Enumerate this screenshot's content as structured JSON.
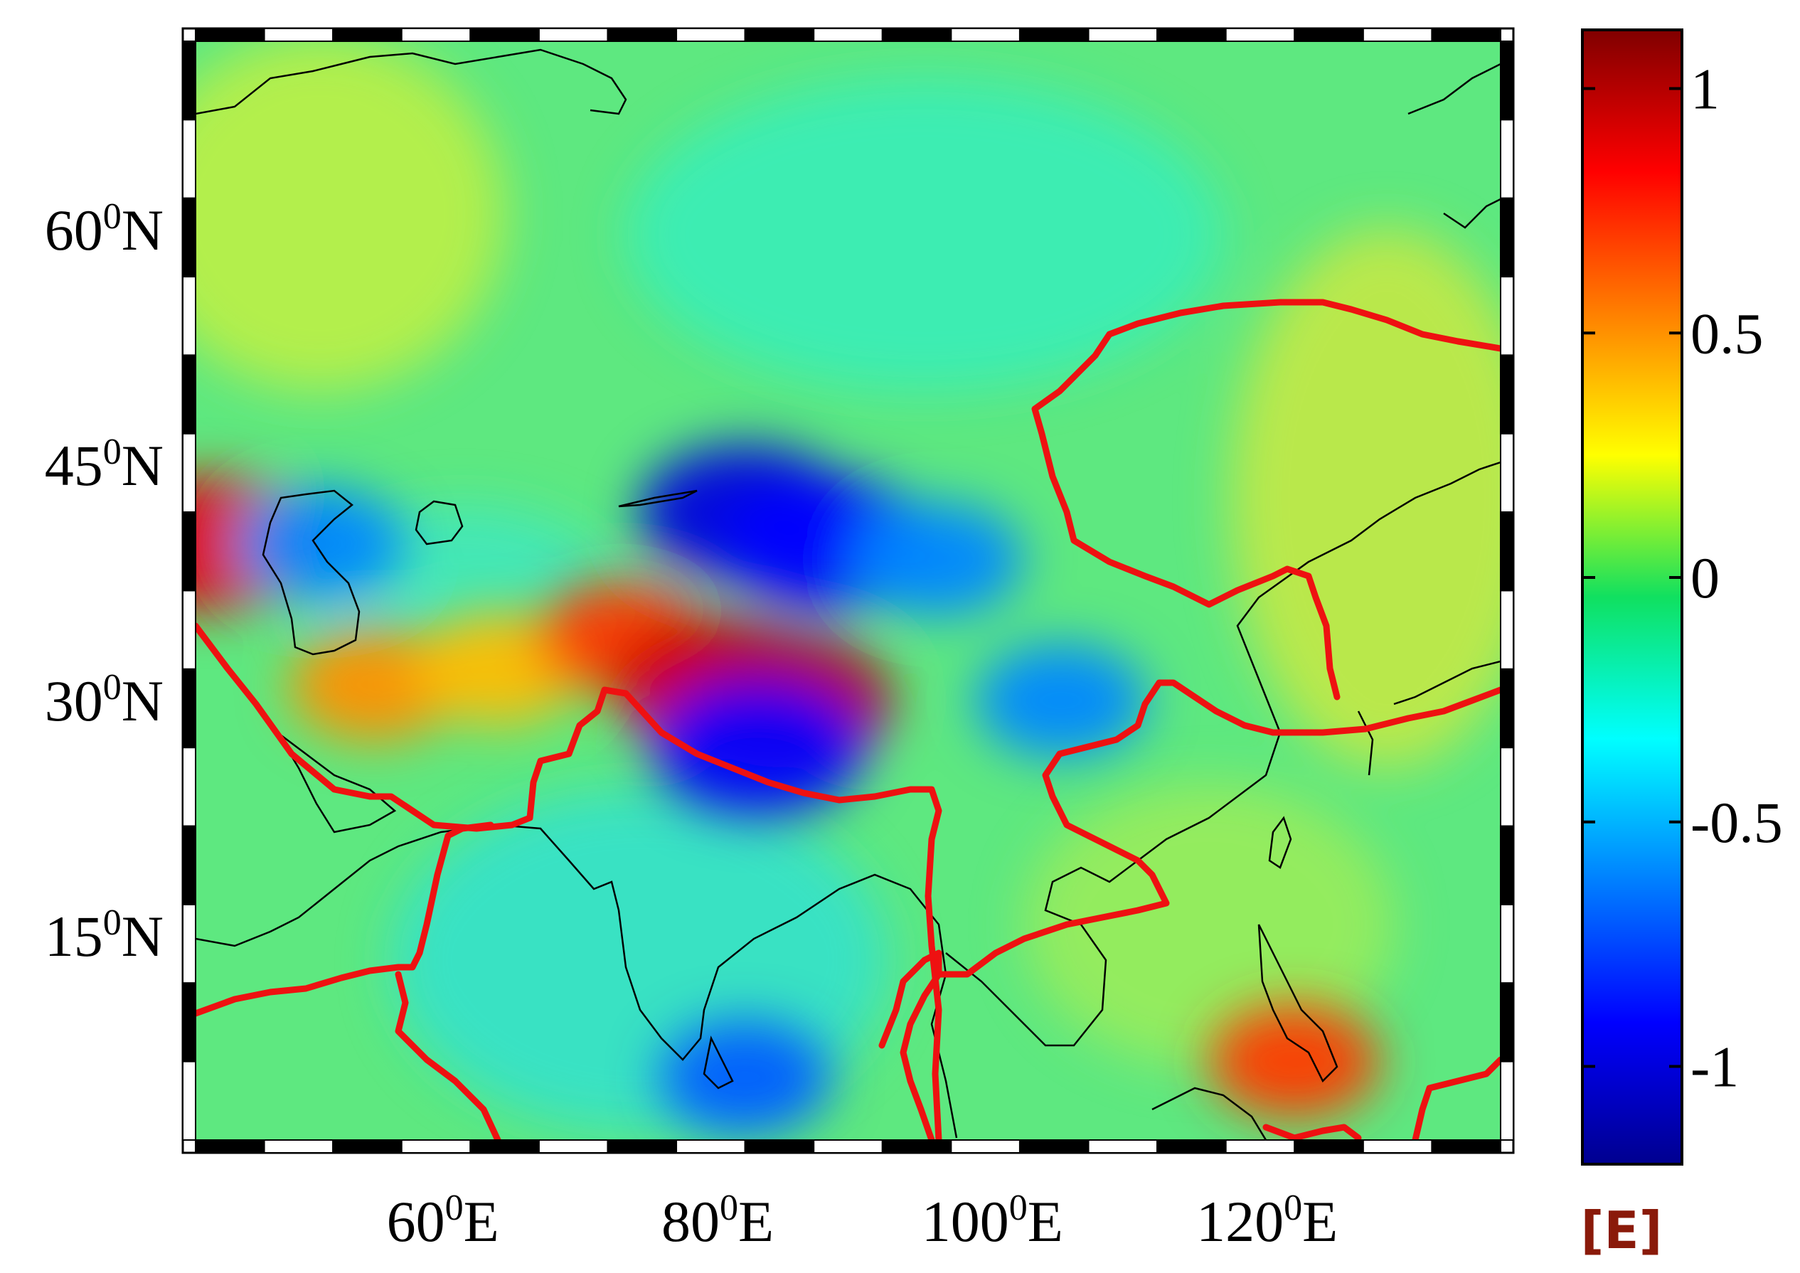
{
  "map": {
    "lat_ticks": [
      {
        "base": "60",
        "deg": "0",
        "hemi": "N"
      },
      {
        "base": "45",
        "deg": "0",
        "hemi": "N"
      },
      {
        "base": "30",
        "deg": "0",
        "hemi": "N"
      },
      {
        "base": "15",
        "deg": "0",
        "hemi": "N"
      }
    ],
    "lon_ticks": [
      {
        "base": "60",
        "deg": "0",
        "hemi": "E"
      },
      {
        "base": "80",
        "deg": "0",
        "hemi": "E"
      },
      {
        "base": "100",
        "deg": "0",
        "hemi": "E"
      },
      {
        "base": "120",
        "deg": "0",
        "hemi": "E"
      }
    ],
    "lat_values": [
      60,
      45,
      30,
      15
    ],
    "lon_values": [
      60,
      80,
      100,
      120
    ],
    "extent": {
      "lon_min": 42,
      "lon_max": 137,
      "lat_min": 2,
      "lat_max": 72
    },
    "frame_style": "alternating black and white bar",
    "overlays": [
      "coastlines (black)",
      "plate boundaries (red)"
    ]
  },
  "colorbar": {
    "ticks": [
      "1",
      "0.5",
      "0",
      "-0.5",
      "-1"
    ],
    "tick_values": [
      1,
      0.5,
      0,
      -0.5,
      -1
    ],
    "range": [
      -1.2,
      1.12
    ],
    "colormap": "jet",
    "unit": "[E]"
  },
  "field_anomalies": [
    {
      "lon": 43,
      "lat": 40,
      "value": 0.9
    },
    {
      "lon": 55,
      "lat": 31,
      "value": 0.5
    },
    {
      "lon": 64,
      "lat": 32,
      "value": 0.4
    },
    {
      "lon": 73,
      "lat": 34,
      "value": 0.7
    },
    {
      "lon": 80,
      "lat": 31,
      "value": 0.95
    },
    {
      "lon": 85,
      "lat": 30,
      "value": 1.0
    },
    {
      "lon": 82,
      "lat": 42,
      "value": -1.0
    },
    {
      "lon": 88,
      "lat": 40,
      "value": -0.9
    },
    {
      "lon": 96,
      "lat": 39,
      "value": -0.6
    },
    {
      "lon": 51,
      "lat": 40,
      "value": -0.6
    },
    {
      "lon": 83,
      "lat": 27,
      "value": -0.9
    },
    {
      "lon": 105,
      "lat": 30,
      "value": -0.6
    },
    {
      "lon": 82,
      "lat": 6,
      "value": -0.7
    },
    {
      "lon": 122,
      "lat": 7,
      "value": 0.7
    }
  ],
  "colors": {
    "plate_boundary": "#ee1111",
    "coastline": "#000000",
    "unit_text": "#8a1a0a"
  }
}
